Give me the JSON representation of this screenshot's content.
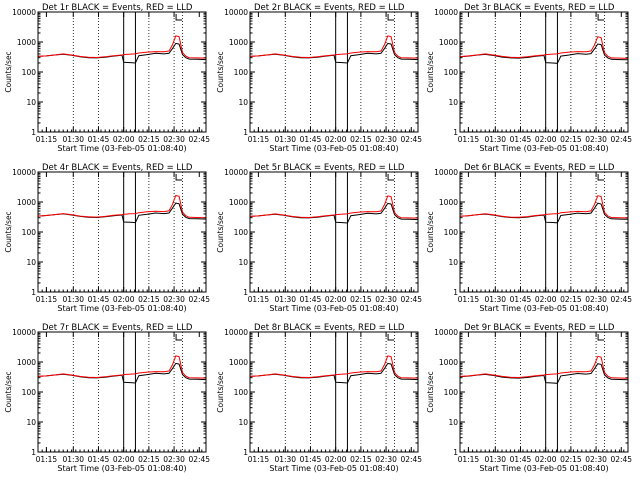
{
  "chart_data": {
    "type": "line",
    "yscale": "log",
    "ylim": [
      1,
      10000
    ],
    "yticks": [
      1,
      10,
      100,
      1000,
      10000
    ],
    "ytick_labels": [
      "1",
      "10",
      "100",
      "1000",
      "10000"
    ],
    "ylabel": "Counts/sec",
    "xlabel": "Start Time (03-Feb-05 01:08:40)",
    "xlim_minutes": [
      0,
      100
    ],
    "xticks_minutes": [
      5,
      21,
      36,
      51,
      66,
      81,
      96
    ],
    "xtick_labels": [
      "01:15",
      "01:30",
      "01:45",
      "02:00",
      "02:15",
      "02:30",
      "02:45"
    ],
    "dotted_markers_minutes": [
      21,
      36,
      66,
      81,
      86
    ],
    "solid_markers_minutes": [
      51,
      58
    ],
    "colors": {
      "events": "#000000",
      "lld": "#ff0000"
    },
    "series_names": [
      "Events",
      "LLD"
    ],
    "times_minutes": [
      0,
      5,
      10,
      15,
      20,
      25,
      30,
      35,
      40,
      45,
      50,
      51,
      55,
      58,
      60,
      65,
      70,
      75,
      78,
      80,
      82,
      84,
      86,
      88,
      90,
      95,
      100
    ],
    "panels": [
      {
        "title": "Det 1r BLACK = Events, RED = LLD",
        "events": [
          330,
          345,
          370,
          390,
          360,
          320,
          300,
          295,
          310,
          340,
          360,
          210,
          205,
          200,
          350,
          380,
          420,
          400,
          420,
          600,
          900,
          850,
          380,
          300,
          270,
          265,
          260
        ],
        "lld": [
          330,
          345,
          370,
          400,
          370,
          330,
          310,
          305,
          320,
          350,
          370,
          380,
          395,
          400,
          430,
          460,
          480,
          470,
          500,
          800,
          1600,
          1500,
          450,
          340,
          300,
          295,
          290
        ]
      },
      {
        "title": "Det 2r BLACK = Events, RED = LLD",
        "events": [
          330,
          345,
          370,
          390,
          360,
          320,
          300,
          295,
          310,
          340,
          360,
          210,
          205,
          200,
          350,
          380,
          420,
          400,
          420,
          600,
          900,
          850,
          380,
          300,
          270,
          265,
          260
        ],
        "lld": [
          330,
          345,
          370,
          400,
          370,
          330,
          310,
          305,
          320,
          350,
          370,
          380,
          395,
          400,
          430,
          460,
          480,
          470,
          500,
          800,
          1600,
          1500,
          450,
          340,
          300,
          295,
          290
        ]
      },
      {
        "title": "Det 3r BLACK = Events, RED = LLD",
        "events": [
          320,
          340,
          365,
          385,
          355,
          315,
          295,
          290,
          305,
          335,
          355,
          205,
          200,
          195,
          340,
          370,
          410,
          390,
          410,
          580,
          860,
          820,
          370,
          295,
          265,
          260,
          255
        ],
        "lld": [
          325,
          345,
          370,
          400,
          370,
          330,
          310,
          305,
          320,
          350,
          370,
          380,
          395,
          400,
          430,
          460,
          480,
          470,
          500,
          780,
          1500,
          1400,
          440,
          335,
          295,
          290,
          285
        ]
      },
      {
        "title": "Det 4r BLACK = Events, RED = LLD",
        "events": [
          340,
          355,
          380,
          400,
          370,
          330,
          310,
          305,
          320,
          350,
          370,
          215,
          210,
          205,
          360,
          390,
          430,
          410,
          430,
          620,
          920,
          870,
          390,
          310,
          280,
          275,
          270
        ],
        "lld": [
          340,
          355,
          380,
          410,
          380,
          340,
          320,
          315,
          330,
          360,
          380,
          390,
          405,
          410,
          440,
          470,
          490,
          480,
          510,
          820,
          1650,
          1550,
          460,
          350,
          310,
          305,
          300
        ]
      },
      {
        "title": "Det 5r BLACK = Events, RED = LLD",
        "events": [
          330,
          345,
          370,
          390,
          360,
          320,
          300,
          295,
          310,
          340,
          360,
          210,
          205,
          200,
          350,
          380,
          420,
          400,
          420,
          600,
          900,
          850,
          380,
          300,
          270,
          265,
          260
        ],
        "lld": [
          330,
          345,
          370,
          400,
          370,
          330,
          310,
          305,
          320,
          350,
          370,
          380,
          395,
          400,
          430,
          460,
          480,
          470,
          500,
          800,
          1600,
          1500,
          450,
          340,
          300,
          295,
          290
        ]
      },
      {
        "title": "Det 6r BLACK = Events, RED = LLD",
        "events": [
          335,
          350,
          375,
          395,
          365,
          325,
          305,
          300,
          315,
          345,
          365,
          212,
          207,
          202,
          355,
          385,
          425,
          405,
          425,
          610,
          910,
          860,
          385,
          305,
          275,
          270,
          265
        ],
        "lld": [
          335,
          350,
          375,
          405,
          375,
          335,
          315,
          310,
          325,
          355,
          375,
          385,
          400,
          405,
          435,
          465,
          485,
          475,
          505,
          810,
          1620,
          1520,
          455,
          345,
          305,
          300,
          295
        ]
      },
      {
        "title": "Det 7r BLACK = Events, RED = LLD",
        "events": [
          330,
          345,
          370,
          390,
          360,
          320,
          300,
          295,
          310,
          340,
          360,
          210,
          205,
          200,
          350,
          380,
          420,
          400,
          420,
          600,
          900,
          850,
          380,
          300,
          270,
          265,
          260
        ],
        "lld": [
          330,
          345,
          370,
          400,
          370,
          330,
          310,
          305,
          320,
          350,
          370,
          380,
          395,
          400,
          430,
          460,
          480,
          470,
          500,
          800,
          1600,
          1500,
          450,
          340,
          300,
          295,
          290
        ]
      },
      {
        "title": "Det 8r BLACK = Events, RED = LLD",
        "events": [
          330,
          345,
          370,
          390,
          360,
          320,
          300,
          295,
          310,
          340,
          360,
          210,
          205,
          200,
          350,
          380,
          420,
          400,
          420,
          600,
          900,
          850,
          380,
          300,
          270,
          265,
          260
        ],
        "lld": [
          330,
          345,
          370,
          400,
          370,
          330,
          310,
          305,
          320,
          350,
          370,
          380,
          395,
          400,
          430,
          460,
          480,
          470,
          500,
          800,
          1600,
          1500,
          450,
          340,
          300,
          295,
          290
        ]
      },
      {
        "title": "Det 9r BLACK = Events, RED = LLD",
        "events": [
          325,
          340,
          365,
          385,
          355,
          315,
          295,
          290,
          305,
          335,
          355,
          205,
          200,
          195,
          345,
          375,
          415,
          395,
          415,
          590,
          880,
          830,
          375,
          295,
          268,
          262,
          258
        ],
        "lld": [
          330,
          345,
          370,
          400,
          370,
          330,
          310,
          305,
          320,
          350,
          370,
          380,
          395,
          400,
          430,
          460,
          480,
          470,
          500,
          790,
          1550,
          1450,
          445,
          338,
          298,
          292,
          288
        ]
      }
    ]
  }
}
